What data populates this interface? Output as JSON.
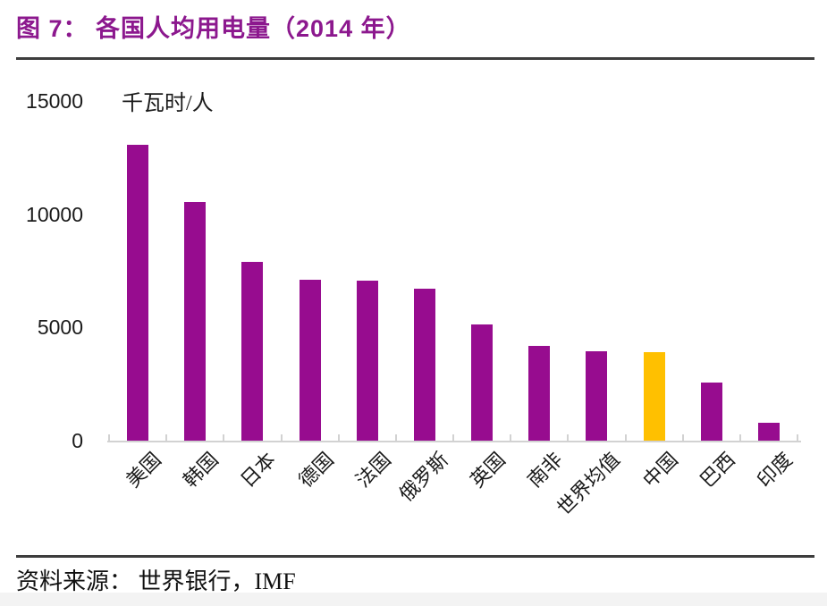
{
  "header": {
    "title": "图 7：  各国人均用电量（2014 年）"
  },
  "chart_data": {
    "type": "bar",
    "title": "图 7：各国人均用电量（2014 年）",
    "unit_label": "千瓦时/人",
    "categories": [
      "美国",
      "韩国",
      "日本",
      "德国",
      "法国",
      "俄罗斯",
      "英国",
      "南非",
      "世界均值",
      "中国",
      "巴西",
      "印度"
    ],
    "values": [
      13050,
      10550,
      7900,
      7100,
      7050,
      6700,
      5150,
      4200,
      3950,
      3900,
      2550,
      800
    ],
    "highlight_category": "中国",
    "highlight_index": 9,
    "yticks": [
      0,
      5000,
      10000,
      15000
    ],
    "ylim": [
      0,
      15000
    ],
    "xlabel": "",
    "ylabel": "千瓦时/人",
    "grid": false,
    "legend": false,
    "colors": {
      "bar": "#970C8F",
      "highlight": "#FFC000",
      "axis": "#D2D2D2",
      "title": "#8C188E"
    }
  },
  "footer": {
    "source": "资料来源：  世界银行，IMF"
  }
}
